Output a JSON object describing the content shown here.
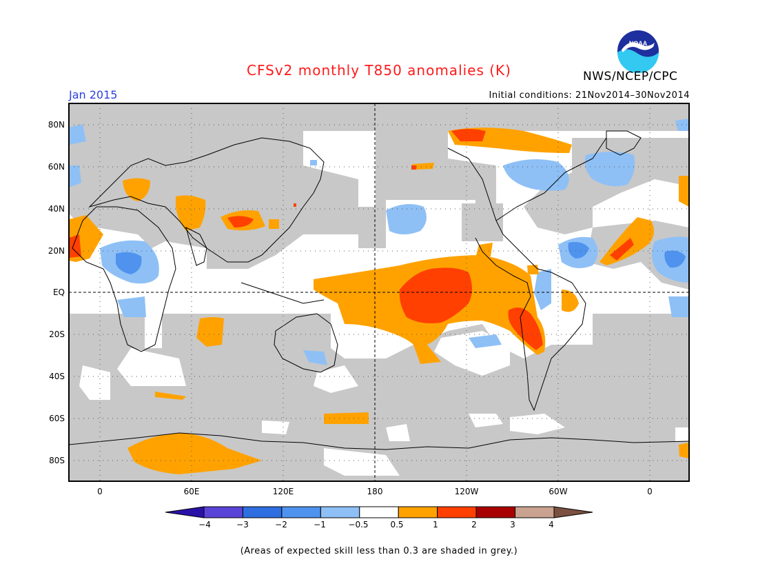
{
  "header": {
    "title": "CFSv2 monthly T850 anomalies (K)",
    "title_color": "#ff1a1a",
    "org": "NWS/NCEP/CPC",
    "month": "Jan 2015",
    "initial_conditions": "Initial conditions: 21Nov2014–30Nov2014"
  },
  "map": {
    "lat_labels": [
      "80N",
      "60N",
      "40N",
      "20N",
      "EQ",
      "20S",
      "40S",
      "60S",
      "80S"
    ],
    "lon_labels": [
      "0",
      "60E",
      "120E",
      "180",
      "120W",
      "60W",
      "0"
    ],
    "skill_mask_color": "#c8c8c8",
    "coastline_color": "#000000"
  },
  "colorbar": {
    "labels": [
      "−4",
      "−3",
      "−2",
      "−1",
      "−0.5",
      "0.5",
      "1",
      "2",
      "3",
      "4"
    ],
    "colors": [
      "#2a12a8",
      "#5a44d8",
      "#2f6ee0",
      "#4f93ee",
      "#8ec0f6",
      "#ffffff",
      "#ffa200",
      "#ff4000",
      "#a80000",
      "#c9a390",
      "#7a5040"
    ]
  },
  "footnote": "(Areas of expected skill less than 0.3 are shaded in grey.)"
}
